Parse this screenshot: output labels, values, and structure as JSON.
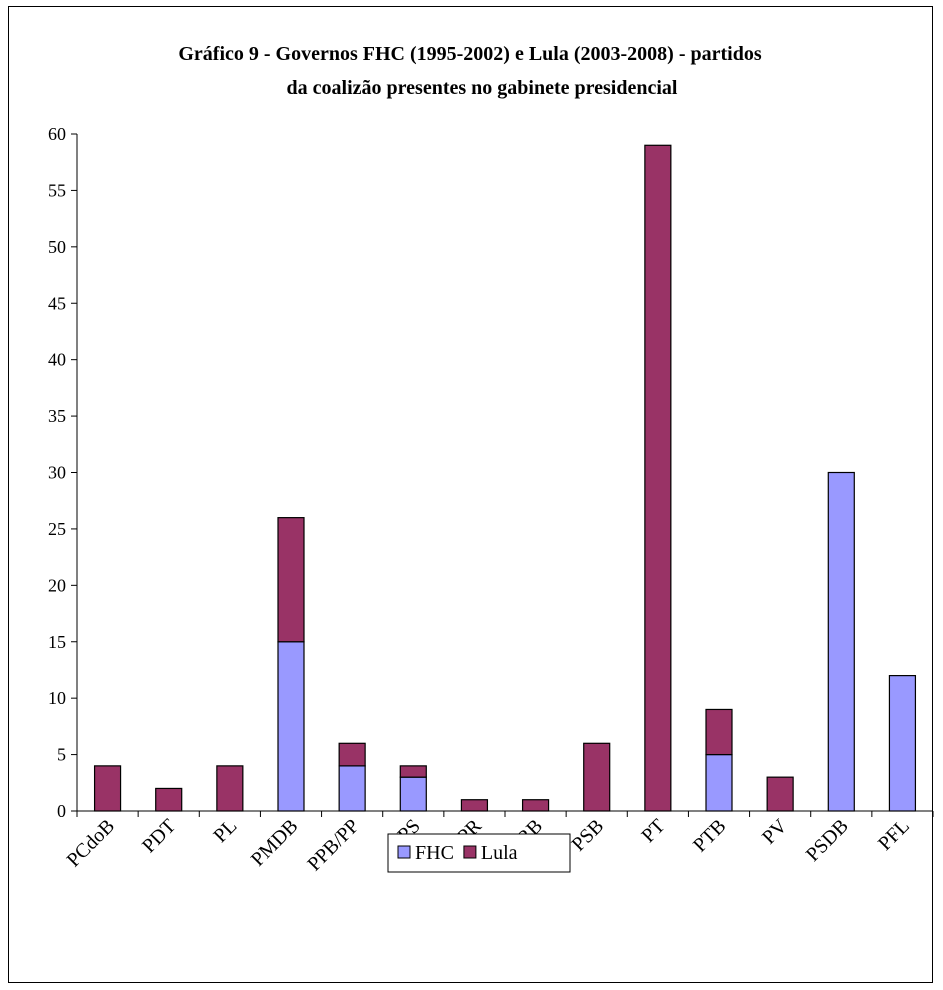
{
  "chart_data": {
    "type": "bar",
    "stacked": true,
    "title_line1": "Gráfico 9 - Governos FHC (1995-2002) e Lula (2003-2008) - partidos",
    "title_line2": "da coalizão presentes no gabinete presidencial",
    "categories": [
      "PCdoB",
      "PDT",
      "PL",
      "PMDB",
      "PPB/PP",
      "PPS",
      "PR",
      "PRB",
      "PSB",
      "PT",
      "PTB",
      "PV",
      "PSDB",
      "PFL"
    ],
    "series": [
      {
        "name": "FHC",
        "color": "#9999FF",
        "values": [
          0,
          0,
          0,
          15,
          4,
          3,
          0,
          0,
          0,
          0,
          5,
          0,
          30,
          12
        ]
      },
      {
        "name": "Lula",
        "color": "#993366",
        "values": [
          4,
          2,
          4,
          11,
          2,
          1,
          1,
          1,
          6,
          59,
          4,
          3,
          0,
          0
        ]
      }
    ],
    "ylim": [
      0,
      60
    ],
    "yticks": [
      0,
      5,
      10,
      15,
      20,
      25,
      30,
      35,
      40,
      45,
      50,
      55,
      60
    ],
    "grid": false,
    "legend_position": "bottom"
  }
}
